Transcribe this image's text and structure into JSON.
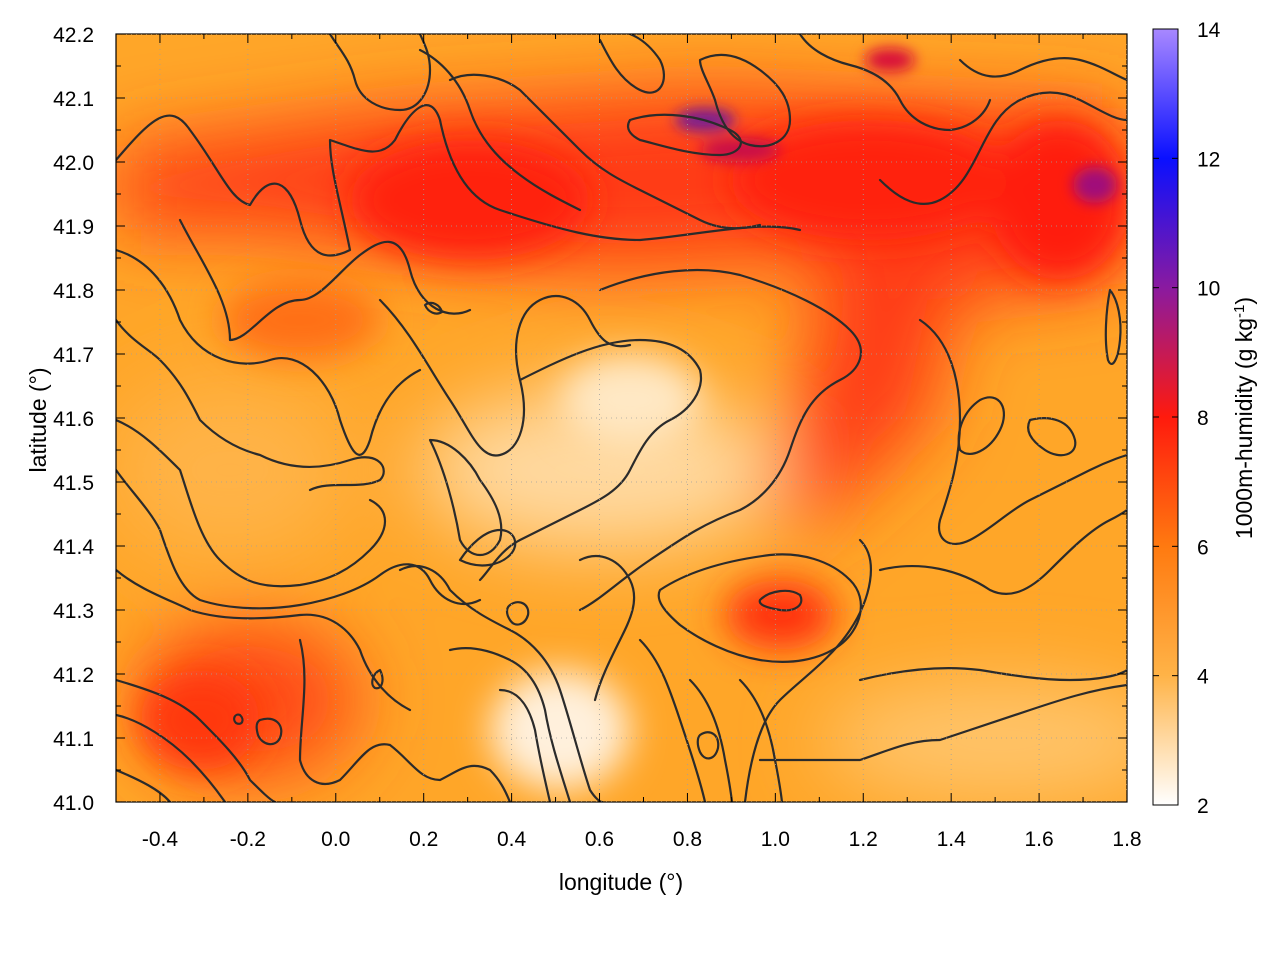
{
  "chart_data": {
    "type": "heatmap",
    "title": "",
    "xlabel": "longitude (°)",
    "ylabel": "latitude (°)",
    "xlim": [
      -0.5,
      1.8
    ],
    "ylim": [
      41.0,
      42.2
    ],
    "x_ticks": [
      -0.4,
      -0.2,
      0.0,
      0.2,
      0.4,
      0.6,
      0.8,
      1.0,
      1.2,
      1.4,
      1.6,
      1.8
    ],
    "x_tick_labels": [
      "-0.4",
      "-0.2",
      "0.0",
      "0.2",
      "0.4",
      "0.6",
      "0.8",
      "1.0",
      "1.2",
      "1.4",
      "1.6",
      "1.8"
    ],
    "y_ticks": [
      41.0,
      41.1,
      41.2,
      41.3,
      41.4,
      41.5,
      41.6,
      41.7,
      41.8,
      41.9,
      42.0,
      42.1,
      42.2
    ],
    "y_tick_labels": [
      "41.0",
      "41.1",
      "41.2",
      "41.3",
      "41.4",
      "41.5",
      "41.6",
      "41.7",
      "41.8",
      "41.9",
      "42.0",
      "42.1",
      "42.2"
    ],
    "grid": true,
    "colorbar": {
      "label": "1000m-humidity (g kg",
      "label_superscript": "-1",
      "label_suffix": ")",
      "range": [
        2,
        14
      ],
      "ticks": [
        2,
        4,
        6,
        8,
        10,
        12,
        14
      ],
      "tick_labels": [
        "2",
        "4",
        "6",
        "8",
        "10",
        "12",
        "14"
      ],
      "palette": [
        {
          "value": 2,
          "color": "#ffffff"
        },
        {
          "value": 4,
          "color": "#ffb347"
        },
        {
          "value": 6,
          "color": "#ff7a10"
        },
        {
          "value": 8,
          "color": "#ff1a0d"
        },
        {
          "value": 10,
          "color": "#8a1aa0"
        },
        {
          "value": 12,
          "color": "#0a10ff"
        },
        {
          "value": 14,
          "color": "#a888ff"
        }
      ]
    },
    "field_features": [
      {
        "region": "northern band",
        "lon": [
          0.1,
          1.8
        ],
        "lat": [
          41.8,
          42.05
        ],
        "humidity": 7.6
      },
      {
        "region": "north-east corner",
        "lon": [
          1.5,
          1.8
        ],
        "lat": [
          41.9,
          42.05
        ],
        "humidity": 8.6
      },
      {
        "region": "north-centre peak",
        "lon": [
          0.75,
          0.95
        ],
        "lat": [
          42.05,
          42.1
        ],
        "humidity": 9.8
      },
      {
        "region": "eastern tongue",
        "lon": [
          1.1,
          1.45
        ],
        "lat": [
          41.4,
          41.8
        ],
        "humidity": 7.3
      },
      {
        "region": "south-west lobe",
        "lon": [
          -0.3,
          0.1
        ],
        "lat": [
          41.0,
          41.25
        ],
        "humidity": 7.0
      },
      {
        "region": "south-centre patch",
        "lon": [
          0.9,
          1.1
        ],
        "lat": [
          41.25,
          41.35
        ],
        "humidity": 7.2
      },
      {
        "region": "western plain",
        "lon": [
          -0.5,
          0.2
        ],
        "lat": [
          41.3,
          41.7
        ],
        "humidity": 5.0
      },
      {
        "region": "central valley",
        "lon": [
          0.5,
          0.8
        ],
        "lat": [
          41.5,
          41.7
        ],
        "humidity": 3.6
      },
      {
        "region": "south-central lowland",
        "lon": [
          0.4,
          0.8
        ],
        "lat": [
          41.0,
          41.2
        ],
        "humidity": 2.5
      },
      {
        "region": "south-east",
        "lon": [
          1.2,
          1.8
        ],
        "lat": [
          41.0,
          41.2
        ],
        "humidity": 4.4
      }
    ]
  }
}
